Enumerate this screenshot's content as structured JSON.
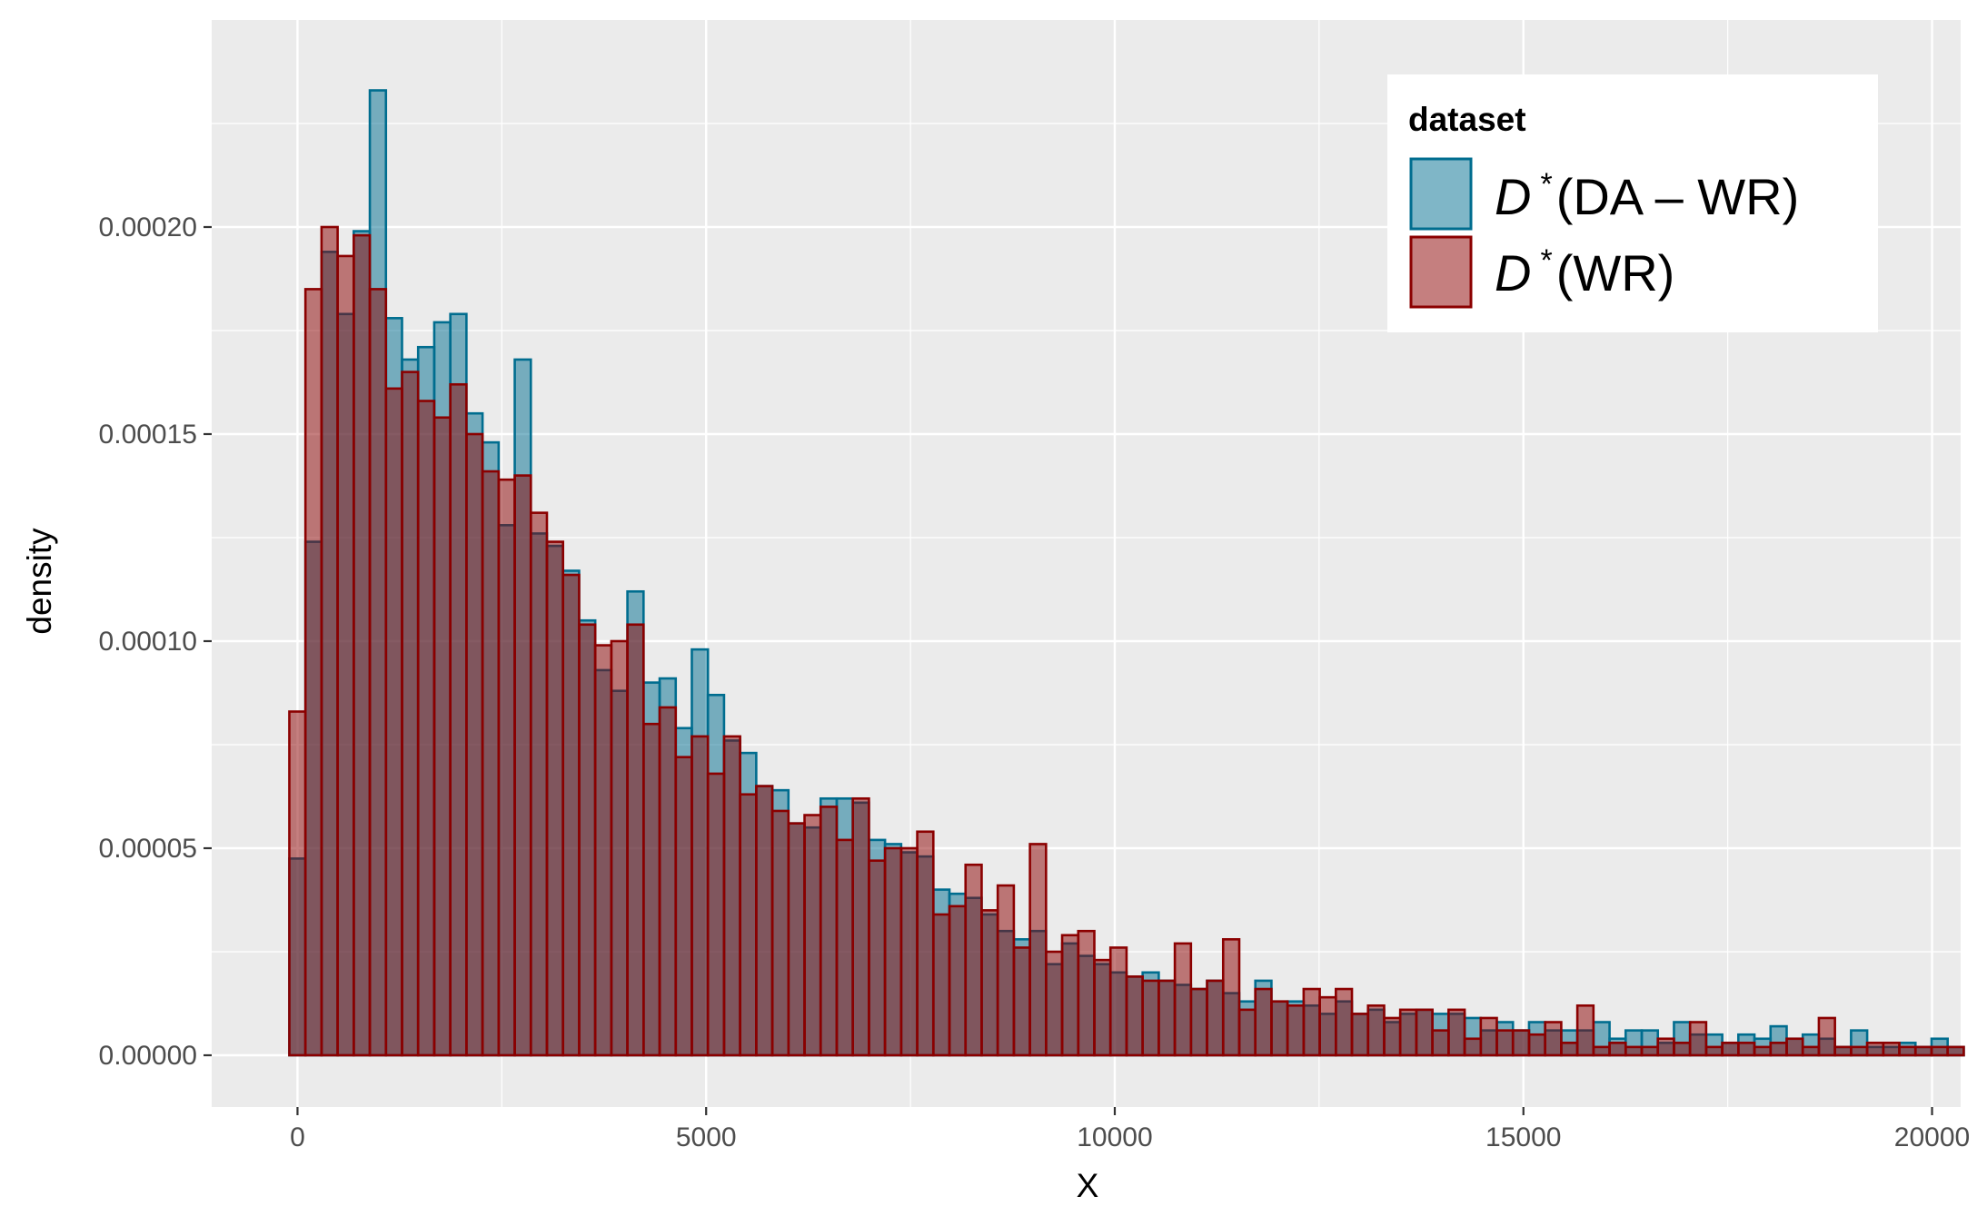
{
  "chart_data": {
    "type": "bar",
    "xlabel": "X",
    "ylabel": "density",
    "xlim": [
      -1050,
      20350
    ],
    "ylim": [
      -1.25e-05,
      0.00025
    ],
    "x_ticks": [
      0,
      5000,
      10000,
      15000,
      20000
    ],
    "x_tick_labels": [
      "0",
      "5000",
      "10000",
      "15000",
      "20000"
    ],
    "y_ticks": [
      0,
      5e-05,
      0.0001,
      0.00015,
      0.0002
    ],
    "y_tick_labels": [
      "0.00000",
      "0.00005",
      "0.00010",
      "0.00015",
      "0.00020"
    ],
    "grid": true,
    "bin_start": -100,
    "bin_width": 197,
    "legend": {
      "title": "dataset",
      "position": "top-right",
      "entries": [
        {
          "math": "D",
          "sup": "*",
          "text": "(DA – WR)"
        },
        {
          "math": "D",
          "sup": "*",
          "text": "(WR)"
        }
      ]
    },
    "series": [
      {
        "fill": "#006d8f",
        "stroke": "#006d8f",
        "opacity": 0.5,
        "values": [
          4.75e-05,
          0.000124,
          0.000194,
          0.000179,
          0.000199,
          0.000233,
          0.000178,
          0.000168,
          0.000171,
          0.000177,
          0.000179,
          0.000155,
          0.000148,
          0.000128,
          0.000168,
          0.000126,
          0.000123,
          0.000117,
          0.000105,
          9.3e-05,
          8.8e-05,
          0.000112,
          9e-05,
          9.1e-05,
          7.9e-05,
          9.8e-05,
          8.7e-05,
          7.6e-05,
          7.3e-05,
          6.5e-05,
          6.4e-05,
          5.6e-05,
          5.5e-05,
          6.2e-05,
          6.2e-05,
          6.1e-05,
          5.2e-05,
          5.1e-05,
          4.9e-05,
          4.8e-05,
          4e-05,
          3.9e-05,
          3.8e-05,
          3.4e-05,
          3e-05,
          2.8e-05,
          3e-05,
          2.2e-05,
          2.7e-05,
          2.4e-05,
          2.2e-05,
          2e-05,
          1.9e-05,
          2e-05,
          1.8e-05,
          1.7e-05,
          1.6e-05,
          1.8e-05,
          1.5e-05,
          1.3e-05,
          1.8e-05,
          1.3e-05,
          1.3e-05,
          1.2e-05,
          1e-05,
          1.3e-05,
          1e-05,
          1.1e-05,
          8e-06,
          1e-05,
          1.1e-05,
          1e-05,
          1e-05,
          9e-06,
          6e-06,
          8e-06,
          6e-06,
          8e-06,
          6e-06,
          6e-06,
          6e-06,
          8e-06,
          4e-06,
          6e-06,
          6e-06,
          3e-06,
          8e-06,
          5e-06,
          5e-06,
          3e-06,
          5e-06,
          4e-06,
          7e-06,
          4e-06,
          5e-06,
          4e-06,
          2e-06,
          6e-06,
          2e-06,
          2e-06,
          3e-06,
          2e-06,
          4e-06,
          2e-06
        ]
      },
      {
        "fill": "#8b0000",
        "stroke": "#8b0000",
        "opacity": 0.5,
        "values": [
          8.3e-05,
          0.000185,
          0.0002,
          0.000193,
          0.000198,
          0.000185,
          0.000161,
          0.000165,
          0.000158,
          0.000154,
          0.000162,
          0.00015,
          0.000141,
          0.000139,
          0.00014,
          0.000131,
          0.000124,
          0.000116,
          0.000104,
          9.9e-05,
          0.0001,
          0.000104,
          8e-05,
          8.4e-05,
          7.2e-05,
          7.7e-05,
          6.8e-05,
          7.7e-05,
          6.3e-05,
          6.5e-05,
          5.9e-05,
          5.6e-05,
          5.8e-05,
          6e-05,
          5.2e-05,
          6.2e-05,
          4.7e-05,
          5e-05,
          5e-05,
          5.4e-05,
          3.4e-05,
          3.6e-05,
          4.6e-05,
          3.5e-05,
          4.1e-05,
          2.6e-05,
          5.1e-05,
          2.5e-05,
          2.9e-05,
          3e-05,
          2.3e-05,
          2.6e-05,
          1.9e-05,
          1.8e-05,
          1.8e-05,
          2.7e-05,
          1.6e-05,
          1.8e-05,
          2.8e-05,
          1.1e-05,
          1.6e-05,
          1.3e-05,
          1.2e-05,
          1.6e-05,
          1.4e-05,
          1.6e-05,
          1e-05,
          1.2e-05,
          9e-06,
          1.1e-05,
          1.1e-05,
          6e-06,
          1.1e-05,
          4e-06,
          9e-06,
          6e-06,
          6e-06,
          5e-06,
          8e-06,
          3e-06,
          1.2e-05,
          2e-06,
          3e-06,
          2e-06,
          2e-06,
          4e-06,
          3e-06,
          8e-06,
          2e-06,
          3e-06,
          3e-06,
          2e-06,
          3e-06,
          4e-06,
          2e-06,
          9e-06,
          2e-06,
          2e-06,
          3e-06,
          3e-06,
          2e-06,
          2e-06,
          2e-06,
          2e-06
        ]
      }
    ]
  }
}
